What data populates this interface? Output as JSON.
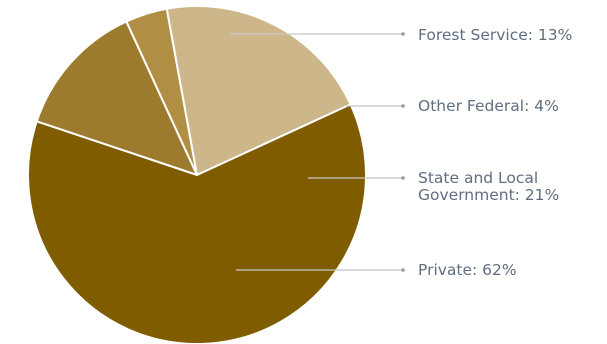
{
  "chart_data": {
    "type": "pie",
    "title": "",
    "slices": [
      {
        "label": "Forest Service: 13%",
        "lines": [
          "Forest Service: 13%"
        ],
        "value": 13,
        "color": "#9c7b2f"
      },
      {
        "label": "Other Federal: 4%",
        "lines": [
          "Other Federal: 4%"
        ],
        "value": 4,
        "color": "#b08f44"
      },
      {
        "label": "State and Local Government: 21%",
        "lines": [
          "State and Local",
          "Government: 21%"
        ],
        "value": 21,
        "color": "#cdb68a"
      },
      {
        "label": "Private: 62%",
        "lines": [
          "Private: 62%"
        ],
        "value": 62,
        "color": "#7f5c00"
      }
    ],
    "legend": "none",
    "labels_placement": "right, with leader lines"
  }
}
